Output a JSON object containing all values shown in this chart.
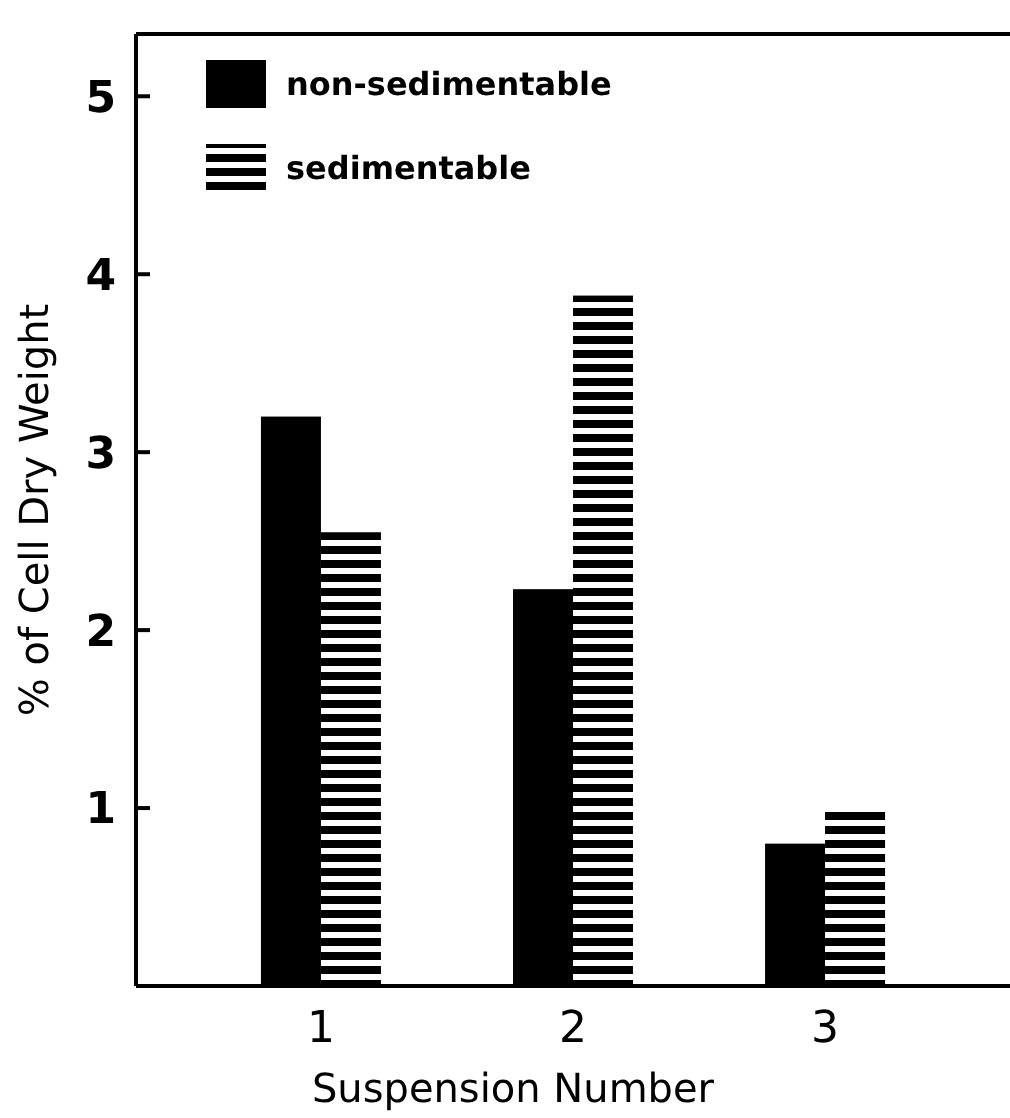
{
  "chart_data": {
    "type": "bar",
    "xlabel": "Suspension Number",
    "ylabel": "% of Cell Dry Weight",
    "categories": [
      "1",
      "2",
      "3"
    ],
    "series": [
      {
        "name": "non-sedimentable",
        "color": "#000000",
        "values": [
          3.2,
          2.23,
          0.8
        ]
      },
      {
        "name": "sedimentable",
        "color": "#000000",
        "values": [
          2.55,
          3.88,
          0.98
        ]
      }
    ],
    "ylim": [
      0,
      5.35
    ],
    "yticks": [
      1,
      2,
      3,
      4,
      5
    ],
    "legend": "top left",
    "grid": false
  }
}
